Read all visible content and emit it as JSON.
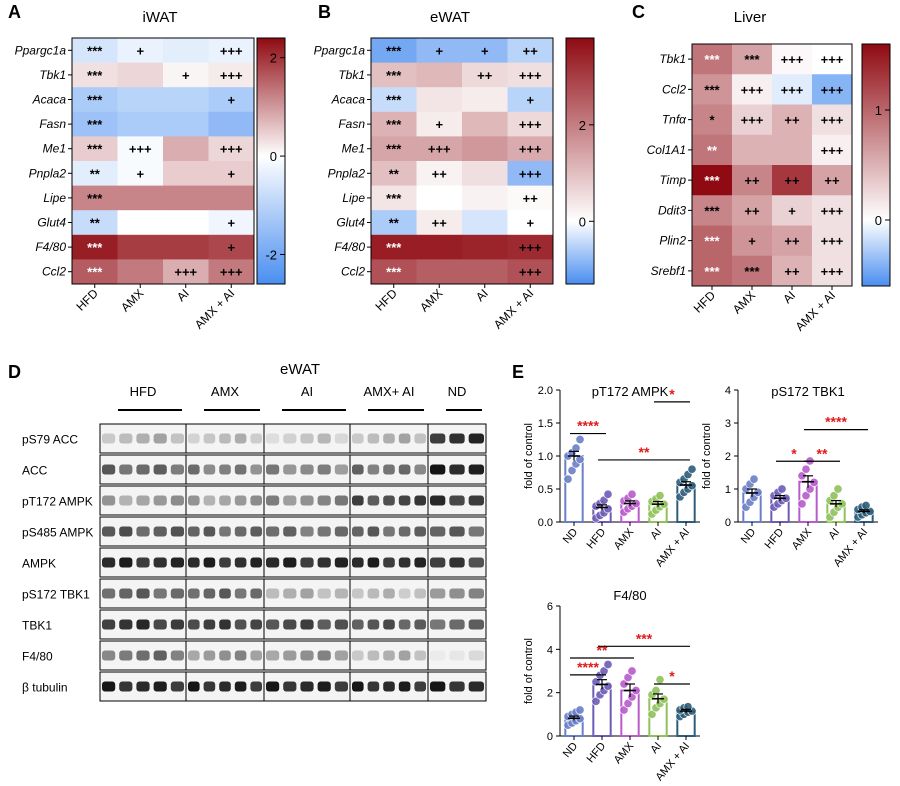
{
  "panels": {
    "A": {
      "letter": "A",
      "title": "iWAT"
    },
    "B": {
      "letter": "B",
      "title": "eWAT"
    },
    "C": {
      "letter": "C",
      "title": "Liver"
    },
    "D": {
      "letter": "D",
      "title": "eWAT"
    },
    "E": {
      "letter": "E"
    }
  },
  "chart_data": [
    {
      "id": "A",
      "type": "heatmap",
      "title": "iWAT",
      "columns": [
        "HFD",
        "AMX",
        "AI",
        "AMX + AI"
      ],
      "rows": [
        "Ppargc1a",
        "Tbk1",
        "Acaca",
        "Fasn",
        "Me1",
        "Pnpla2",
        "Lipe",
        "Glut4",
        "F4/80",
        "Ccl2"
      ],
      "values": [
        [
          -0.6,
          -0.3,
          -0.4,
          -0.3
        ],
        [
          0.3,
          0.4,
          0.1,
          0.2
        ],
        [
          -1.2,
          -1.0,
          -1.0,
          -1.2
        ],
        [
          -1.4,
          -1.2,
          -1.2,
          -1.6
        ],
        [
          0.5,
          -0.1,
          0.8,
          0.4
        ],
        [
          -0.4,
          -0.1,
          0.5,
          0.5
        ],
        [
          1.2,
          1.2,
          1.2,
          1.2
        ],
        [
          -0.8,
          0.0,
          0.0,
          -0.2
        ],
        [
          2.2,
          1.9,
          1.9,
          1.8
        ],
        [
          1.6,
          1.3,
          0.8,
          1.3
        ]
      ],
      "annotations": [
        [
          "***",
          "+",
          "",
          "+++"
        ],
        [
          "***",
          "",
          "+",
          "+++"
        ],
        [
          "***",
          "",
          "",
          "+"
        ],
        [
          "***",
          "",
          "",
          ""
        ],
        [
          "***",
          "+++",
          "",
          "+++"
        ],
        [
          "**",
          "+",
          "",
          "+"
        ],
        [
          "***",
          "",
          "",
          ""
        ],
        [
          "**",
          "",
          "",
          "+"
        ],
        [
          "***",
          "",
          "",
          "+"
        ],
        [
          "***",
          "",
          "+++",
          "+++"
        ]
      ],
      "colorbar": {
        "ticks": [
          2,
          0,
          -2
        ],
        "range": [
          -2.6,
          2.4
        ]
      }
    },
    {
      "id": "B",
      "type": "heatmap",
      "title": "eWAT",
      "columns": [
        "HFD",
        "AMX",
        "AI",
        "AMX + AI"
      ],
      "rows": [
        "Ppargc1a",
        "Tbk1",
        "Acaca",
        "Fasn",
        "Me1",
        "Pnpla2",
        "Lipe",
        "Glut4",
        "F4/80",
        "Ccl2"
      ],
      "values": [
        [
          -1.0,
          -0.8,
          -0.8,
          -0.5
        ],
        [
          1.0,
          1.1,
          0.6,
          0.5
        ],
        [
          -0.4,
          0.4,
          0.3,
          -0.5
        ],
        [
          1.2,
          0.3,
          1.1,
          0.6
        ],
        [
          1.4,
          1.4,
          1.6,
          1.3
        ],
        [
          1.0,
          0.2,
          0.5,
          -0.8
        ],
        [
          0.4,
          0.0,
          0.2,
          0.1
        ],
        [
          -0.6,
          0.3,
          -0.3,
          0.0
        ],
        [
          3.5,
          3.5,
          3.4,
          3.3
        ],
        [
          2.7,
          2.5,
          2.5,
          2.7
        ]
      ],
      "annotations": [
        [
          "***",
          "+",
          "+",
          "++"
        ],
        [
          "***",
          "",
          "++",
          "+++"
        ],
        [
          "***",
          "",
          "",
          "+"
        ],
        [
          "***",
          "+",
          "",
          "+++"
        ],
        [
          "***",
          "+++",
          "",
          "+++"
        ],
        [
          "**",
          "++",
          "",
          "+++"
        ],
        [
          "***",
          "",
          "",
          "++"
        ],
        [
          "**",
          "++",
          "",
          "+"
        ],
        [
          "***",
          "",
          "",
          "+++"
        ],
        [
          "***",
          "",
          "",
          "+++"
        ]
      ],
      "colorbar": {
        "ticks": [
          2,
          0
        ],
        "range": [
          -1.3,
          3.8
        ]
      }
    },
    {
      "id": "C",
      "type": "heatmap",
      "title": "Liver",
      "columns": [
        "HFD",
        "AMX",
        "AI",
        "AMX + AI"
      ],
      "rows": [
        "Tbk1",
        "Ccl2",
        "Tnfα",
        "Col1A1",
        "Timp",
        "Ddit3",
        "Plin2",
        "Srebf1"
      ],
      "values": [
        [
          0.9,
          0.6,
          0.05,
          0.0
        ],
        [
          0.7,
          0.1,
          -0.1,
          -0.4
        ],
        [
          0.8,
          0.3,
          0.5,
          0.2
        ],
        [
          0.9,
          0.5,
          0.5,
          0.1
        ],
        [
          1.7,
          0.8,
          1.3,
          0.6
        ],
        [
          0.8,
          0.6,
          0.3,
          0.2
        ],
        [
          1.0,
          0.7,
          0.6,
          0.2
        ],
        [
          1.0,
          0.9,
          0.5,
          0.2
        ]
      ],
      "annotations": [
        [
          "***",
          "***",
          "+++",
          "+++"
        ],
        [
          "***",
          "+++",
          "+++",
          "+++"
        ],
        [
          "*",
          "+++",
          "++",
          "+++"
        ],
        [
          "**",
          "",
          "",
          "+++"
        ],
        [
          "***",
          "++",
          "++",
          "++"
        ],
        [
          "***",
          "++",
          "+",
          "+++"
        ],
        [
          "***",
          "+",
          "++",
          "+++"
        ],
        [
          "***",
          "***",
          "++",
          "+++"
        ]
      ],
      "colorbar": {
        "ticks": [
          1,
          0
        ],
        "range": [
          -0.6,
          1.6
        ]
      }
    },
    {
      "id": "E1",
      "type": "bar",
      "title": "pT172 AMPK",
      "categories": [
        "ND",
        "HFD",
        "AMX",
        "AI",
        "AMX + AI"
      ],
      "values": [
        1.0,
        0.22,
        0.28,
        0.27,
        0.56
      ],
      "sem": [
        0.07,
        0.04,
        0.04,
        0.04,
        0.05
      ],
      "points": [
        [
          0.65,
          0.78,
          0.88,
          0.95,
          1.0,
          1.05,
          1.12,
          1.25
        ],
        [
          0.06,
          0.1,
          0.14,
          0.2,
          0.24,
          0.28,
          0.33,
          0.42
        ],
        [
          0.15,
          0.2,
          0.24,
          0.28,
          0.32,
          0.36,
          0.42
        ],
        [
          0.12,
          0.18,
          0.23,
          0.27,
          0.31,
          0.35,
          0.4
        ],
        [
          0.38,
          0.45,
          0.5,
          0.55,
          0.6,
          0.65,
          0.72,
          0.8
        ]
      ],
      "ylabel": "fold of control",
      "ylim": [
        0,
        2.0
      ],
      "yticks": [
        "0.0",
        "0.5",
        "1.0",
        "1.5",
        "2.0"
      ],
      "significance": [
        {
          "from": 0,
          "to": 1,
          "label": "****"
        },
        {
          "from": 1,
          "to": 4,
          "label": "**"
        },
        {
          "from": 3,
          "to": 4,
          "label": "*"
        }
      ]
    },
    {
      "id": "E2",
      "type": "bar",
      "title": "pS172 TBK1",
      "categories": [
        "ND",
        "HFD",
        "AMX",
        "AI",
        "AMX + AI"
      ],
      "values": [
        0.88,
        0.72,
        1.22,
        0.55,
        0.32
      ],
      "sem": [
        0.12,
        0.08,
        0.18,
        0.1,
        0.05
      ],
      "points": [
        [
          0.45,
          0.6,
          0.75,
          0.9,
          1.0,
          1.15,
          1.3
        ],
        [
          0.45,
          0.55,
          0.65,
          0.72,
          0.8,
          0.9,
          1.0
        ],
        [
          0.55,
          0.8,
          1.0,
          1.2,
          1.4,
          1.6,
          1.85
        ],
        [
          0.15,
          0.3,
          0.45,
          0.55,
          0.65,
          0.8,
          1.0
        ],
        [
          0.15,
          0.22,
          0.28,
          0.32,
          0.38,
          0.45,
          0.5
        ]
      ],
      "ylabel": "fold of control",
      "ylim": [
        0,
        4
      ],
      "yticks": [
        "0",
        "1",
        "2",
        "3",
        "4"
      ],
      "significance": [
        {
          "from": 1,
          "to": 2,
          "label": "*"
        },
        {
          "from": 2,
          "to": 3,
          "label": "**"
        },
        {
          "from": 2,
          "to": 4,
          "label": "****"
        }
      ]
    },
    {
      "id": "E3",
      "type": "bar",
      "title": "F4/80",
      "categories": [
        "ND",
        "HFD",
        "AMX",
        "AI",
        "AMX + AI"
      ],
      "values": [
        0.82,
        2.38,
        2.1,
        1.72,
        1.15
      ],
      "sem": [
        0.1,
        0.22,
        0.3,
        0.22,
        0.08
      ],
      "points": [
        [
          0.5,
          0.6,
          0.7,
          0.8,
          0.9,
          1.0,
          1.1,
          1.2
        ],
        [
          1.6,
          1.9,
          2.1,
          2.3,
          2.5,
          2.8,
          3.0,
          3.3
        ],
        [
          1.2,
          1.5,
          1.8,
          2.1,
          2.4,
          2.7,
          3.0
        ],
        [
          1.0,
          1.3,
          1.5,
          1.7,
          1.9,
          2.1,
          2.6
        ],
        [
          0.9,
          1.0,
          1.1,
          1.15,
          1.2,
          1.3,
          1.35
        ]
      ],
      "ylabel": "fold of control",
      "ylim": [
        0,
        6
      ],
      "yticks": [
        "0",
        "2",
        "4",
        "6"
      ],
      "significance": [
        {
          "from": 0,
          "to": 1,
          "label": "****"
        },
        {
          "from": 0,
          "to": 2,
          "label": "**"
        },
        {
          "from": 1,
          "to": 4,
          "label": "***"
        },
        {
          "from": 3,
          "to": 4,
          "label": "*"
        }
      ]
    }
  ],
  "western": {
    "groups": [
      "HFD",
      "AMX",
      "AI",
      "AMX+ AI",
      "ND"
    ],
    "rows": [
      {
        "label": "pS79 ACC",
        "intensity": [
          0.25,
          0.2,
          0.15,
          0.25,
          0.9
        ]
      },
      {
        "label": "ACC",
        "intensity": [
          0.6,
          0.5,
          0.45,
          0.55,
          0.95
        ]
      },
      {
        "label": "pT172 AMPK",
        "intensity": [
          0.35,
          0.35,
          0.45,
          0.75,
          0.85
        ]
      },
      {
        "label": "pS485 AMPK",
        "intensity": [
          0.65,
          0.6,
          0.55,
          0.6,
          0.6
        ]
      },
      {
        "label": "AMPK",
        "intensity": [
          0.9,
          0.9,
          0.9,
          0.9,
          0.8
        ]
      },
      {
        "label": "pS172 TBK1",
        "intensity": [
          0.6,
          0.6,
          0.25,
          0.2,
          0.4
        ]
      },
      {
        "label": "TBK1",
        "intensity": [
          0.85,
          0.8,
          0.75,
          0.7,
          0.6
        ]
      },
      {
        "label": "F4/80",
        "intensity": [
          0.55,
          0.4,
          0.4,
          0.25,
          0.05
        ]
      },
      {
        "label": "β tubulin",
        "intensity": [
          0.9,
          0.9,
          0.9,
          0.9,
          0.9
        ]
      }
    ]
  },
  "colors": {
    "heat_low": "#4a8ef0",
    "heat_mid": "#ffffff",
    "heat_high": "#8f0a12",
    "bars": [
      "#6b7fc8",
      "#6d5cb5",
      "#b85ccc",
      "#8fc25a",
      "#2d5d7a"
    ],
    "significance": "#e01a1a"
  }
}
